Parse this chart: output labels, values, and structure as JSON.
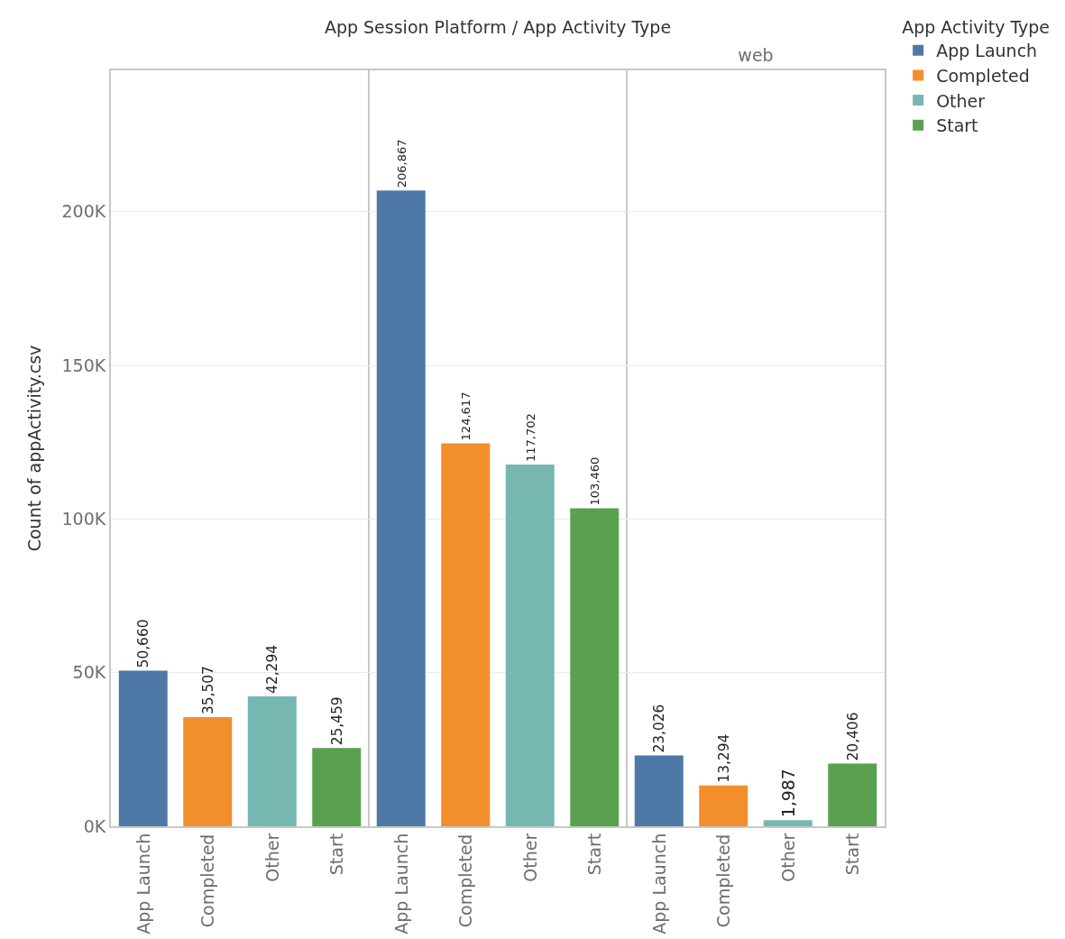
{
  "chart_data": {
    "type": "bar",
    "xlabel": "App Session Platform / App Activity Type",
    "ylabel": "Count of appActivity.csv",
    "legend_title": "App Activity Type",
    "legend": "top right",
    "categories": [
      null,
      null,
      "web"
    ],
    "series": [
      {
        "name": "App Launch",
        "color": "#4e79a7",
        "values": [
          50660,
          206867,
          23026
        ],
        "value_labels": [
          "50,660",
          "206,867",
          "23,026"
        ]
      },
      {
        "name": "Completed",
        "color": "#f28e2b",
        "values": [
          35507,
          124617,
          13294
        ],
        "value_labels": [
          "35,507",
          "124,617",
          "13,294"
        ]
      },
      {
        "name": "Other",
        "color": "#76b7b2",
        "values": [
          42294,
          117702,
          1987
        ],
        "value_labels": [
          "42,294",
          "117,702",
          "1,987"
        ]
      },
      {
        "name": "Start",
        "color": "#59a14f",
        "values": [
          25459,
          103460,
          20406
        ],
        "value_labels": [
          "25,459",
          "103,460",
          "20,406"
        ]
      }
    ],
    "ylim": [
      0,
      246000
    ],
    "yticks": [
      {
        "value": 0,
        "label": "0K"
      },
      {
        "value": 50000,
        "label": "50K"
      },
      {
        "value": 100000,
        "label": "100K"
      },
      {
        "value": 150000,
        "label": "150K"
      },
      {
        "value": 200000,
        "label": "200K"
      }
    ],
    "grid": "y"
  }
}
